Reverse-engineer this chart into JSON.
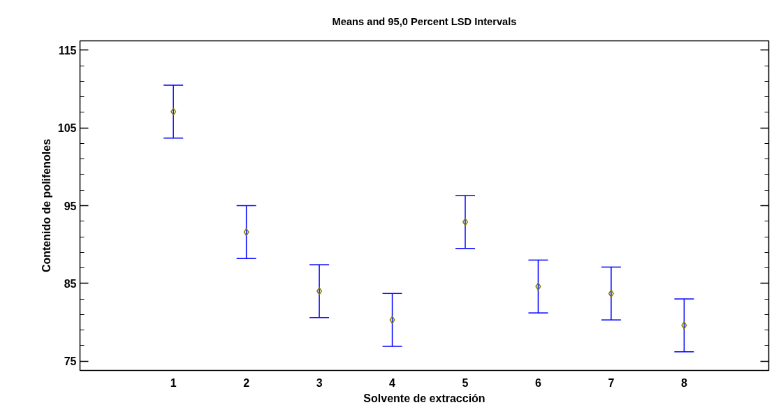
{
  "chart_data": {
    "type": "scatter",
    "title": "Means and 95,0 Percent LSD Intervals",
    "xlabel": "Solvente de extracción",
    "ylabel": "Contenido de polifenoles",
    "x": [
      1,
      2,
      3,
      4,
      5,
      6,
      7,
      8
    ],
    "series": [
      {
        "color": "#808000",
        "values": [
          107.1,
          91.6,
          84.0,
          80.3,
          92.9,
          84.6,
          83.7,
          79.6
        ],
        "errors": [
          3.4,
          3.4,
          3.4,
          3.4,
          3.4,
          3.4,
          3.4,
          3.4
        ]
      }
    ],
    "xlim": [
      -0.28,
      9.16
    ],
    "xticks": [
      1,
      2,
      3,
      4,
      5,
      6,
      7,
      8
    ],
    "ylim": [
      73.8,
      116.2
    ],
    "yticks": [
      75,
      85,
      95,
      105,
      115
    ],
    "marker": "diamond",
    "grid": false
  }
}
